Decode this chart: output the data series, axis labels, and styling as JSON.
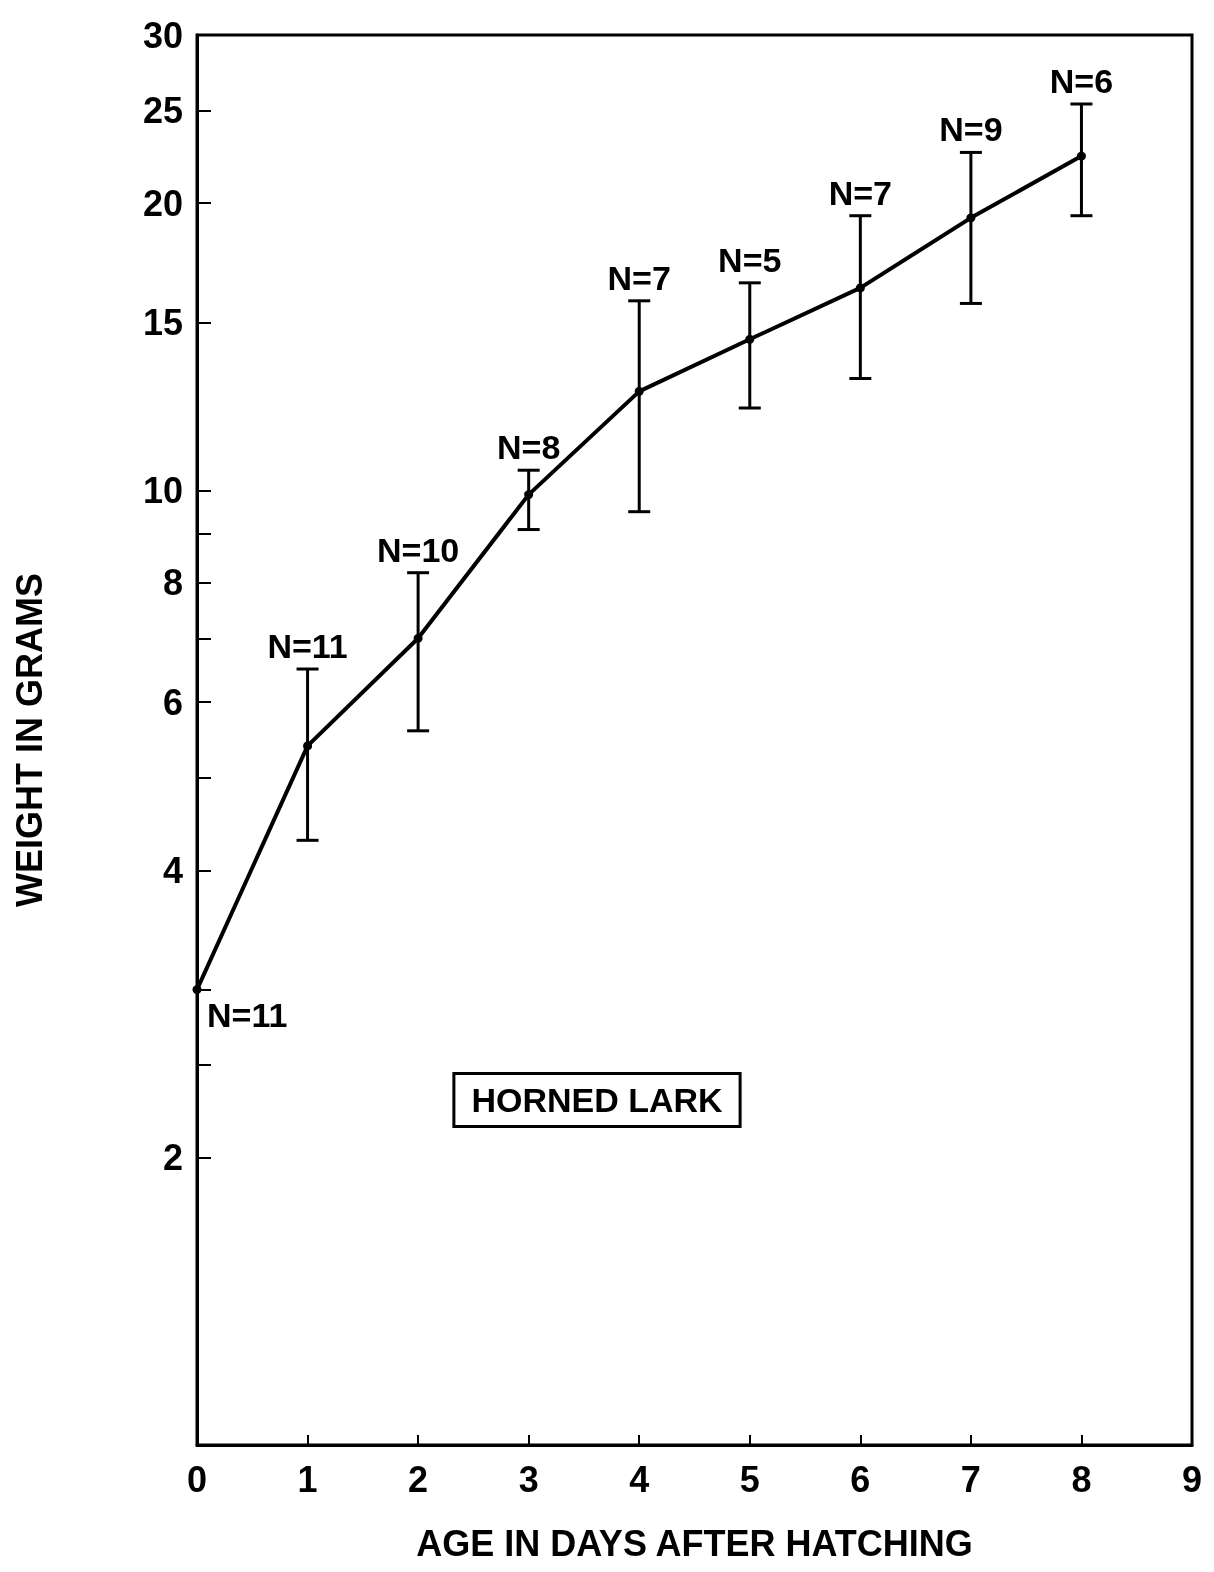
{
  "chart_data": {
    "type": "line",
    "xlabel": "AGE IN DAYS AFTER HATCHING",
    "ylabel": "WEIGHT IN GRAMS",
    "x": [
      0,
      1,
      2,
      3,
      4,
      5,
      6,
      7,
      8
    ],
    "series": [
      {
        "color": "#000000",
        "values": [
          3.0,
          5.4,
          7.0,
          9.9,
          12.7,
          14.4,
          16.3,
          19.3,
          22.4
        ],
        "errors": [
          null,
          [
            4.3,
            6.5
          ],
          [
            5.6,
            8.2
          ],
          [
            9.1,
            10.5
          ],
          [
            9.5,
            15.8
          ],
          [
            12.2,
            16.5
          ],
          [
            13.1,
            19.4
          ],
          [
            15.7,
            22.6
          ],
          [
            19.4,
            25.4
          ]
        ]
      }
    ],
    "xlim": [
      0,
      9
    ],
    "xticks": [
      0,
      1,
      2,
      3,
      4,
      5,
      6,
      7,
      8,
      9
    ],
    "ylim": [
      1,
      30
    ],
    "log": "y",
    "yticks": [
      2,
      {
        "value": 2.5,
        "label": null
      },
      {
        "value": 3,
        "label": null
      },
      4,
      {
        "value": 5,
        "label": null
      },
      6,
      {
        "value": 7,
        "label": null
      },
      8,
      {
        "value": 9,
        "label": null
      },
      10,
      15,
      20,
      25,
      30
    ],
    "annotations": [
      "HORNED LARK",
      {
        "text": "N=11",
        "x": 0,
        "y": 3.0
      },
      {
        "text": "N=11",
        "x": 1,
        "y": 6.5
      },
      {
        "text": "N=10",
        "x": 2,
        "y": 8.2
      },
      {
        "text": "N=8",
        "x": 3,
        "y": 10.5
      },
      {
        "text": "N=7",
        "x": 4,
        "y": 15.8
      },
      {
        "text": "N=5",
        "x": 5,
        "y": 16.5
      },
      {
        "text": "N=7",
        "x": 6,
        "y": 19.4
      },
      {
        "text": "N=9",
        "x": 7,
        "y": 22.6
      },
      {
        "text": "N=6",
        "x": 8,
        "y": 25.4
      }
    ],
    "marker": "circle",
    "line_style": "solid",
    "grid": false
  }
}
